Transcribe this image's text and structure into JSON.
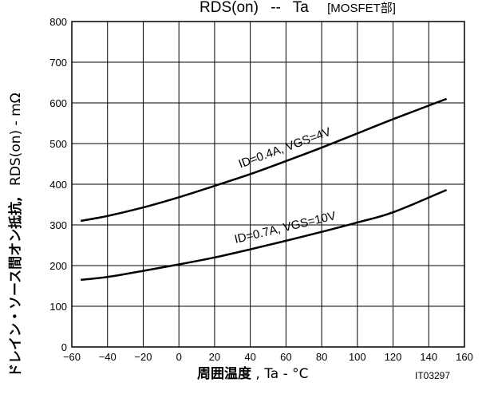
{
  "chart_data": {
    "type": "line",
    "title": {
      "main": "RDS(on)",
      "sep": "--",
      "var": "Ta",
      "tag": "[MOSFET部]"
    },
    "xlabel": {
      "main": "周囲温度",
      "rest": ", Ta  -  °C"
    },
    "ylabel": {
      "main": "ドレイン・ソース間オン抵抗,",
      "rest": "RDS(on)  -  mΩ"
    },
    "xlim": [
      -60,
      160
    ],
    "ylim": [
      0,
      800
    ],
    "x_ticks": [
      -60,
      -40,
      -20,
      0,
      20,
      40,
      60,
      80,
      100,
      120,
      140,
      160
    ],
    "x_tick_labels": [
      "−60",
      "−40",
      "−20",
      "0",
      "20",
      "40",
      "60",
      "80",
      "100",
      "120",
      "140",
      "160"
    ],
    "y_ticks": [
      0,
      100,
      200,
      300,
      400,
      500,
      600,
      700,
      800
    ],
    "y_tick_labels": [
      "0",
      "100",
      "200",
      "300",
      "400",
      "500",
      "600",
      "700",
      "800"
    ],
    "grid": true,
    "series": [
      {
        "name": "ID=0.4A, VGS=4V",
        "x": [
          -55,
          -40,
          -20,
          0,
          20,
          40,
          60,
          80,
          100,
          120,
          150
        ],
        "y": [
          310,
          322,
          343,
          368,
          396,
          425,
          457,
          490,
          525,
          560,
          610
        ]
      },
      {
        "name": "ID=0.7A, VGS=10V",
        "x": [
          -55,
          -40,
          -20,
          0,
          20,
          40,
          60,
          80,
          100,
          120,
          150
        ],
        "y": [
          165,
          172,
          187,
          203,
          220,
          240,
          261,
          283,
          306,
          331,
          386
        ]
      }
    ],
    "figure_code": "IT03297"
  }
}
